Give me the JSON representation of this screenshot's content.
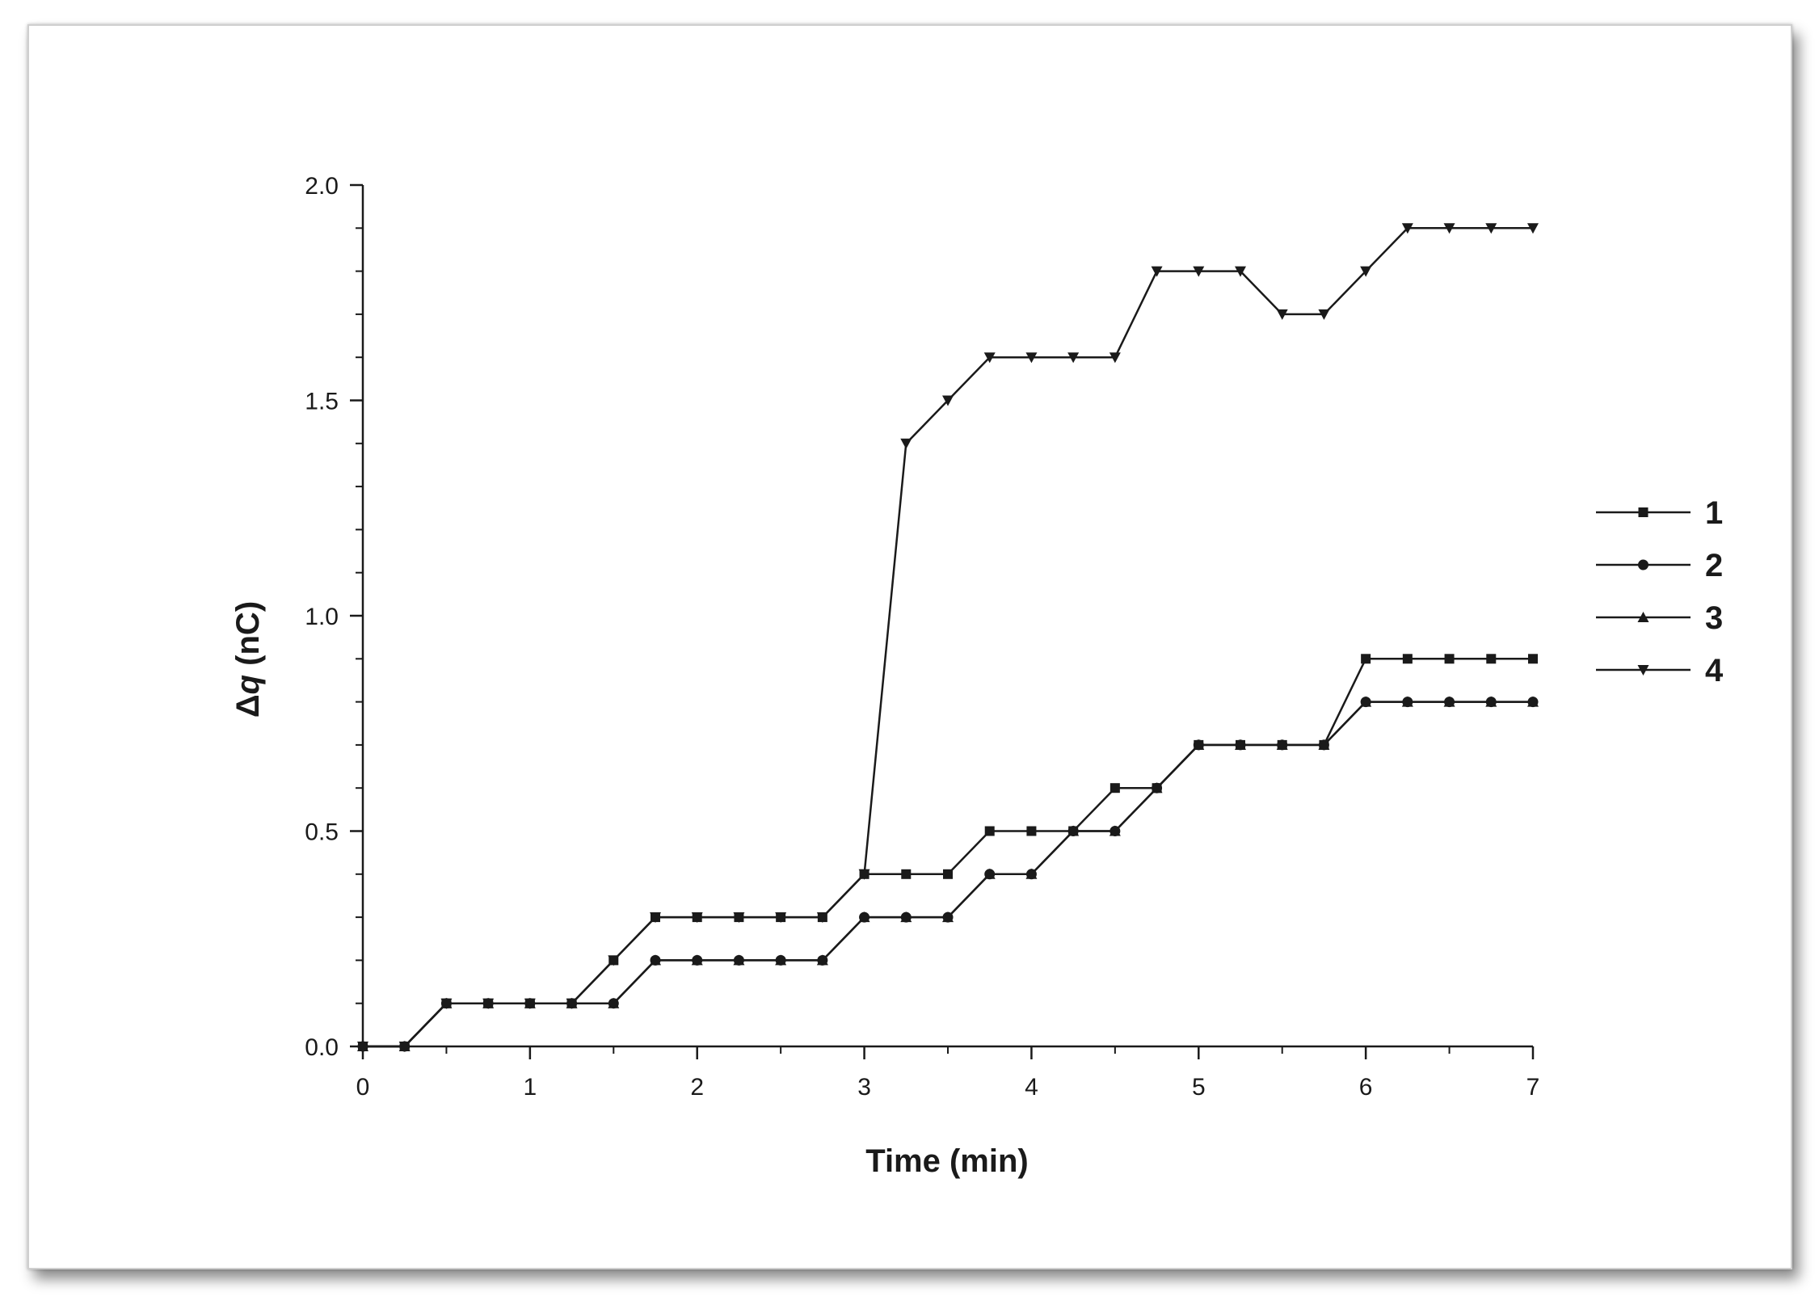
{
  "chart_data": {
    "type": "line",
    "xlabel": "Time (min)",
    "ylabel_prefix": "Δ",
    "ylabel_var": "q",
    "ylabel_suffix": " (nC)",
    "xlim": [
      0,
      7
    ],
    "ylim": [
      0,
      2.0
    ],
    "x_ticks": [
      "0",
      "1",
      "2",
      "3",
      "4",
      "5",
      "6",
      "7"
    ],
    "y_ticks": [
      "0.0",
      "0.5",
      "1.0",
      "1.5",
      "2.0"
    ],
    "grid": false,
    "legend_position": "right",
    "x": [
      0,
      0.25,
      0.5,
      0.75,
      1.0,
      1.25,
      1.5,
      1.75,
      2.0,
      2.25,
      2.5,
      2.75,
      3.0,
      3.25,
      3.5,
      3.75,
      4.0,
      4.25,
      4.5,
      4.75,
      5.0,
      5.25,
      5.5,
      5.75,
      6.0,
      6.25,
      6.5,
      6.75,
      7.0
    ],
    "series": [
      {
        "name": "1",
        "marker": "square",
        "values": [
          0,
          0,
          0.1,
          0.1,
          0.1,
          0.1,
          0.2,
          0.3,
          0.3,
          0.3,
          0.3,
          0.3,
          0.4,
          0.4,
          0.4,
          0.5,
          0.5,
          0.5,
          0.6,
          0.6,
          0.7,
          0.7,
          0.7,
          0.7,
          0.9,
          0.9,
          0.9,
          0.9,
          0.9
        ]
      },
      {
        "name": "2",
        "marker": "circle",
        "values": [
          0,
          0,
          0.1,
          0.1,
          0.1,
          0.1,
          0.1,
          0.2,
          0.2,
          0.2,
          0.2,
          0.2,
          0.3,
          0.3,
          0.3,
          0.4,
          0.4,
          0.5,
          0.5,
          0.6,
          0.7,
          0.7,
          0.7,
          0.7,
          0.8,
          0.8,
          0.8,
          0.8,
          0.8
        ]
      },
      {
        "name": "3",
        "marker": "triangle-up",
        "values": [
          0,
          0,
          0.1,
          0.1,
          0.1,
          0.1,
          0.1,
          0.2,
          0.2,
          0.2,
          0.2,
          0.2,
          0.3,
          0.3,
          0.3,
          0.4,
          0.4,
          0.5,
          0.5,
          0.6,
          0.7,
          0.7,
          0.7,
          0.7,
          0.8,
          0.8,
          0.8,
          0.8,
          0.8
        ]
      },
      {
        "name": "4",
        "marker": "triangle-down",
        "values": [
          0,
          0,
          0.1,
          0.1,
          0.1,
          0.1,
          0.2,
          0.3,
          0.3,
          0.3,
          0.3,
          0.3,
          0.4,
          1.4,
          1.5,
          1.6,
          1.6,
          1.6,
          1.6,
          1.8,
          1.8,
          1.8,
          1.7,
          1.7,
          1.8,
          1.9,
          1.9,
          1.9,
          1.9
        ]
      }
    ],
    "colors": {
      "line": "#1a1a1a",
      "frame_border": "#cfcfcf"
    }
  }
}
